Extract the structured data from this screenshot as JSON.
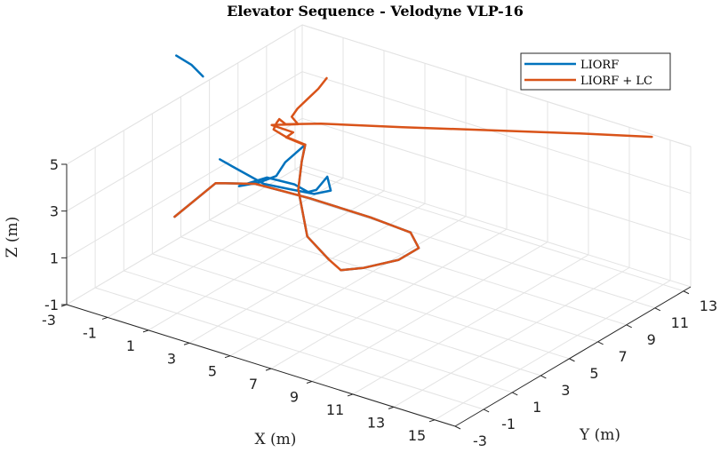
{
  "chart_data": {
    "type": "line",
    "title": "Elevator Sequence - Velodyne VLP-16",
    "xlabel": "X (m)",
    "ylabel": "Y (m)",
    "zlabel": "Z (m)",
    "x_ticks": [
      -3,
      -1,
      1,
      3,
      5,
      7,
      9,
      11,
      13,
      15
    ],
    "y_ticks": [
      -3,
      -1,
      1,
      3,
      5,
      7,
      9,
      11,
      13
    ],
    "z_ticks": [
      -1,
      1,
      3,
      5
    ],
    "xlim": [
      -3,
      16
    ],
    "ylim": [
      -3,
      13.5
    ],
    "zlim": [
      -1,
      5
    ],
    "grid": true,
    "legend_position": "top-right",
    "series": [
      {
        "name": "LIORF",
        "color": "#0072BD",
        "segments": [
          [
            [
              -2.4,
              3.7,
              0.5
            ],
            [
              -2.9,
              7.3,
              0.5
            ],
            [
              -1.6,
              8.2,
              0.5
            ],
            [
              0.9,
              8.4,
              0.5
            ],
            [
              3.9,
              8.4,
              0.5
            ],
            [
              6.0,
              8.2,
              0.5
            ],
            [
              7.1,
              7.2,
              0.5
            ],
            [
              7.1,
              5.8,
              0.5
            ],
            [
              6.4,
              4.3,
              0.5
            ],
            [
              5.8,
              3.6,
              0.5
            ]
          ],
          [
            [
              5.2,
              3.6,
              0.8
            ],
            [
              4.3,
              3.4,
              1.6
            ],
            [
              4.0,
              3.2,
              3.6
            ],
            [
              4.1,
              3.3,
              4.8
            ],
            [
              4.2,
              3.4,
              5.5
            ],
            [
              3.5,
              3.0,
              4.7
            ],
            [
              3.2,
              2.8,
              4.1
            ],
            [
              2.5,
              2.6,
              3.7
            ],
            [
              1.8,
              2.2,
              3.5
            ],
            [
              2.6,
              3.0,
              3.8
            ],
            [
              3.6,
              3.5,
              3.6
            ],
            [
              4.2,
              3.6,
              3.4
            ],
            [
              4.6,
              3.6,
              3.6
            ],
            [
              5.0,
              3.8,
              4.2
            ],
            [
              5.1,
              3.9,
              3.6
            ],
            [
              4.5,
              3.6,
              3.4
            ],
            [
              3.6,
              3.2,
              3.5
            ],
            [
              2.6,
              2.8,
              3.6
            ],
            [
              1.4,
              2.3,
              4.2
            ],
            [
              1.0,
              2.0,
              4.5
            ]
          ],
          [
            [
              -1.2,
              2.1,
              8.3
            ],
            [
              -0.6,
              2.3,
              8.0
            ],
            [
              -0.1,
              2.4,
              7.6
            ]
          ]
        ]
      },
      {
        "name": "LIORF + LC",
        "color": "#D95319",
        "segments": [
          [
            [
              -2.4,
              3.7,
              0.5
            ],
            [
              -2.9,
              7.3,
              0.5
            ],
            [
              -1.6,
              8.2,
              0.5
            ],
            [
              0.9,
              8.4,
              0.5
            ],
            [
              3.9,
              8.4,
              0.5
            ],
            [
              6.0,
              8.2,
              0.5
            ],
            [
              7.1,
              7.2,
              0.5
            ],
            [
              7.1,
              5.8,
              0.5
            ],
            [
              6.4,
              4.3,
              0.5
            ],
            [
              5.8,
              3.6,
              0.5
            ],
            [
              5.2,
              3.6,
              0.8
            ],
            [
              4.3,
              3.4,
              1.6
            ],
            [
              4.0,
              3.2,
              3.6
            ],
            [
              4.1,
              3.3,
              4.8
            ],
            [
              4.2,
              3.4,
              5.5
            ],
            [
              3.5,
              3.0,
              5.8
            ],
            [
              3.0,
              2.9,
              6.0
            ],
            [
              3.0,
              3.1,
              6.2
            ],
            [
              3.0,
              3.3,
              6.3
            ],
            [
              3.1,
              3.6,
              6.0
            ],
            [
              4.2,
              4.5,
              6.0
            ],
            [
              7.0,
              6.2,
              6.0
            ],
            [
              13.0,
              10.0,
              6.0
            ],
            [
              15.5,
              11.5,
              6.0
            ]
          ],
          [
            [
              3.8,
              3.9,
              5.2
            ],
            [
              3.2,
              3.5,
              5.5
            ],
            [
              3.4,
              3.7,
              5.7
            ],
            [
              2.7,
              3.2,
              6.0
            ],
            [
              3.5,
              3.9,
              6.0
            ],
            [
              3.4,
              3.6,
              6.4
            ],
            [
              3.4,
              4.0,
              6.6
            ],
            [
              3.7,
              4.3,
              7.0
            ],
            [
              4.0,
              4.6,
              7.4
            ],
            [
              4.2,
              4.9,
              7.8
            ]
          ]
        ]
      }
    ]
  }
}
